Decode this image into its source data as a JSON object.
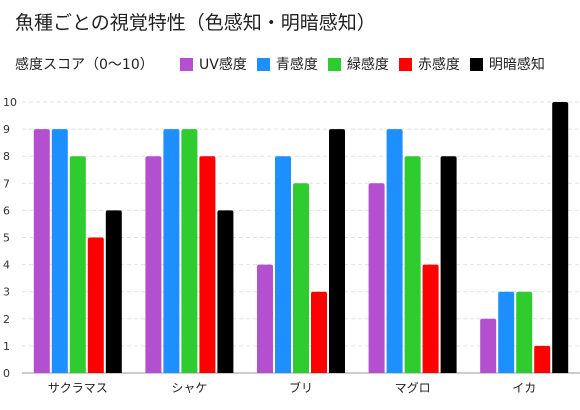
{
  "chart_data": {
    "type": "bar",
    "title": "魚種ごとの視覚特性（色感知・明暗感知）",
    "ylabel": "感度スコア（0〜10）",
    "xlabel": "",
    "ylim": [
      0,
      10
    ],
    "yticks": [
      0,
      1,
      2,
      3,
      4,
      5,
      6,
      7,
      8,
      9,
      10
    ],
    "grid": true,
    "legend_position": "top",
    "categories": [
      "サクラマス",
      "シャケ",
      "ブリ",
      "マグロ",
      "イカ"
    ],
    "series": [
      {
        "name": "UV感度",
        "color": "#b44fd0",
        "values": [
          9,
          8,
          4,
          7,
          2
        ]
      },
      {
        "name": "青感度",
        "color": "#1e8fff",
        "values": [
          9,
          9,
          8,
          9,
          3
        ]
      },
      {
        "name": "緑感度",
        "color": "#2ecc2e",
        "values": [
          8,
          9,
          7,
          8,
          3
        ]
      },
      {
        "name": "赤感度",
        "color": "#ff0000",
        "values": [
          5,
          8,
          3,
          4,
          1
        ]
      },
      {
        "name": "明暗感知",
        "color": "#000000",
        "values": [
          6,
          6,
          9,
          8,
          10
        ]
      }
    ]
  }
}
